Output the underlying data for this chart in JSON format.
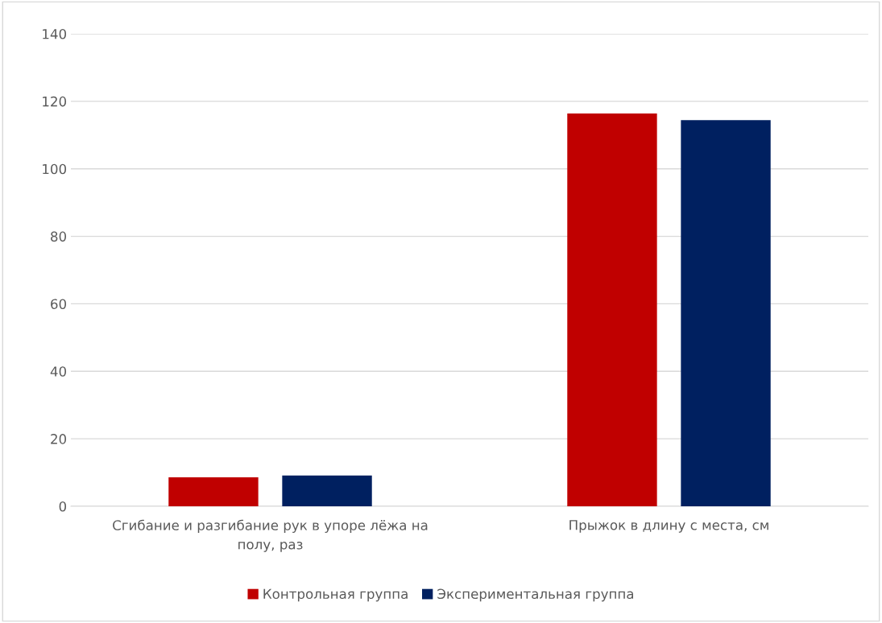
{
  "chart_data": {
    "type": "bar",
    "categories": [
      "Сгибание и разгибание рук в упоре лёжа на полу, раз",
      "Прыжок в длину с места, см"
    ],
    "series": [
      {
        "name": "Контрольная группа",
        "color": "#c00000",
        "values": [
          8.6,
          116.4
        ]
      },
      {
        "name": "Экспериментальная группа",
        "color": "#002060",
        "values": [
          9.1,
          114.4
        ]
      }
    ],
    "ylim": [
      0,
      140
    ],
    "yticks": [
      0,
      20,
      40,
      60,
      80,
      100,
      120,
      140
    ],
    "grid": "y",
    "legend": "bottom"
  }
}
